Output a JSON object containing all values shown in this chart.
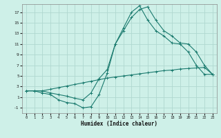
{
  "xlabel": "Humidex (Indice chaleur)",
  "background_color": "#cef0e8",
  "grid_color": "#b0d8d0",
  "line_color": "#1a7a6e",
  "x_ticks": [
    0,
    1,
    2,
    3,
    4,
    5,
    6,
    7,
    8,
    9,
    10,
    11,
    12,
    13,
    14,
    15,
    16,
    17,
    18,
    19,
    20,
    21,
    22,
    23
  ],
  "y_ticks": [
    -1,
    1,
    3,
    5,
    7,
    9,
    11,
    13,
    15,
    17
  ],
  "ylim": [
    -2.0,
    18.5
  ],
  "xlim": [
    -0.5,
    23.5
  ],
  "series1_x": [
    0,
    1,
    2,
    3,
    4,
    5,
    6,
    7,
    8,
    9,
    10,
    11,
    12,
    13,
    14,
    15,
    16,
    17,
    18,
    19,
    20,
    21,
    22,
    23
  ],
  "series1_y": [
    2.2,
    2.2,
    2.2,
    2.5,
    2.8,
    3.1,
    3.4,
    3.7,
    4.0,
    4.3,
    4.6,
    4.8,
    5.0,
    5.2,
    5.4,
    5.6,
    5.8,
    6.0,
    6.1,
    6.3,
    6.4,
    6.5,
    6.6,
    5.3
  ],
  "series2_x": [
    0,
    1,
    2,
    3,
    4,
    5,
    6,
    7,
    8,
    9,
    10,
    11,
    12,
    13,
    14,
    15,
    16,
    17,
    18,
    19,
    20,
    21,
    22,
    23
  ],
  "series2_y": [
    2.2,
    2.2,
    2.2,
    1.8,
    1.5,
    1.2,
    0.8,
    0.5,
    1.8,
    4.5,
    6.2,
    11.0,
    13.5,
    16.0,
    17.5,
    18.0,
    15.5,
    13.5,
    12.5,
    11.2,
    11.0,
    9.5,
    7.0,
    5.3
  ],
  "series3_x": [
    0,
    1,
    2,
    3,
    4,
    5,
    6,
    7,
    8,
    9,
    10,
    11,
    12,
    13,
    14,
    15,
    16,
    17,
    18,
    19,
    20,
    21,
    22,
    23
  ],
  "series3_y": [
    2.2,
    2.2,
    1.8,
    1.5,
    0.5,
    0.0,
    -0.2,
    -1.0,
    -0.8,
    1.5,
    5.5,
    11.0,
    14.0,
    17.0,
    18.2,
    15.5,
    13.5,
    12.5,
    11.2,
    11.0,
    9.5,
    7.0,
    5.3,
    5.3
  ]
}
